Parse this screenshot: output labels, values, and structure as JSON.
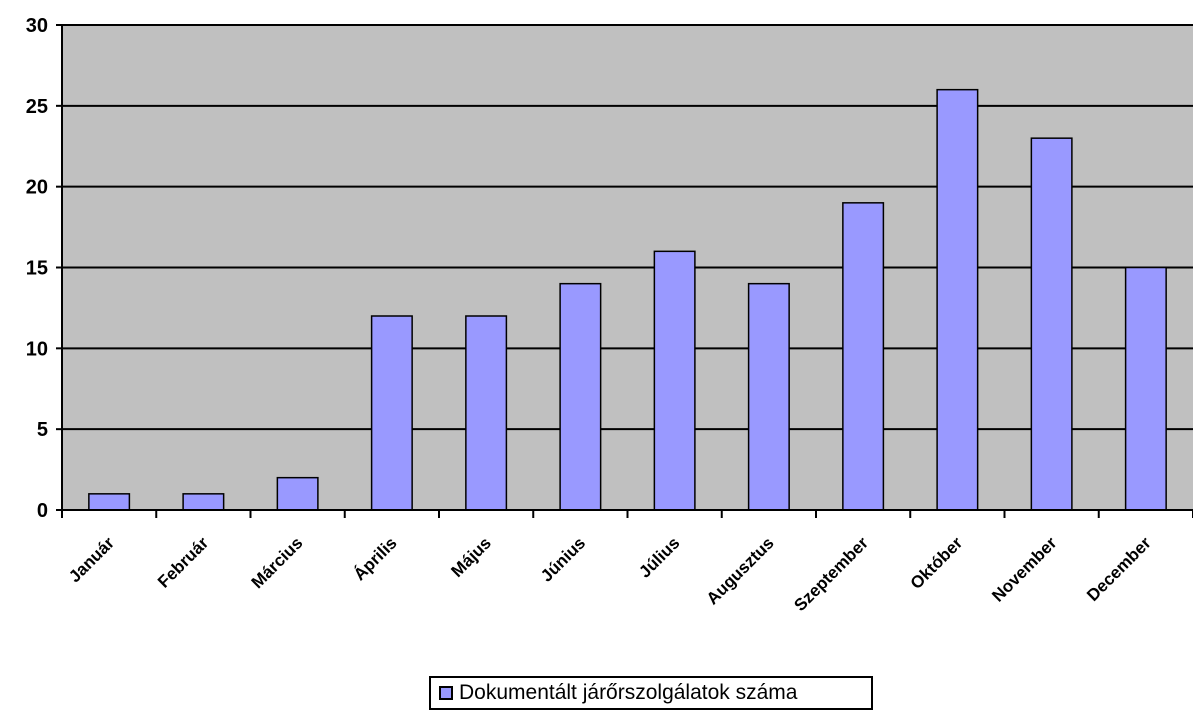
{
  "chart_data": {
    "type": "bar",
    "categories": [
      "Január",
      "Február",
      "Március",
      "Április",
      "Május",
      "Június",
      "Július",
      "Augusztus",
      "Szeptember",
      "Október",
      "November",
      "December"
    ],
    "series": [
      {
        "name": "Dokumentált járőrszolgálatok száma",
        "values": [
          1,
          1,
          2,
          12,
          12,
          14,
          16,
          14,
          19,
          26,
          23,
          15
        ],
        "color": "#9999ff"
      }
    ],
    "ylim": [
      0,
      30
    ],
    "yticks": [
      "0",
      "5",
      "10",
      "15",
      "20",
      "25",
      "30"
    ],
    "grid": true,
    "legend_position": "bottom",
    "plot_background": "#c0c0c0"
  }
}
